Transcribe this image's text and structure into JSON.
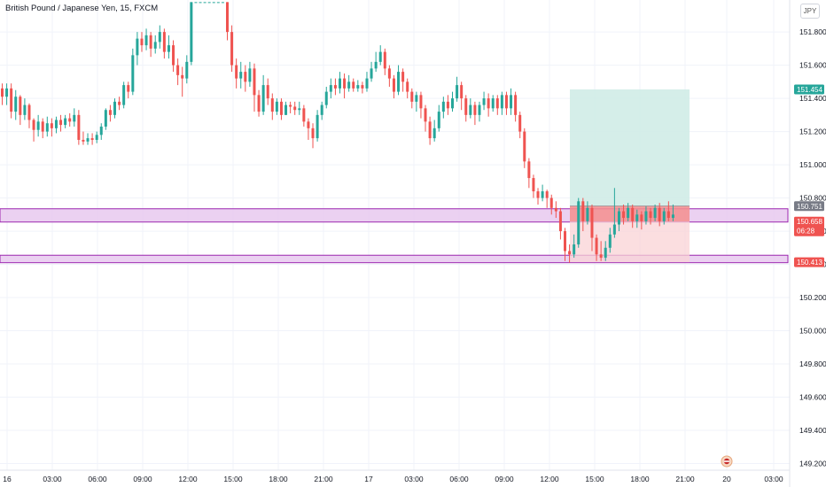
{
  "header": {
    "symbol_title": "British Pound / Japanese Yen, 15, FXCM",
    "currency_label": "JPY"
  },
  "colors": {
    "up": "#26a69a",
    "down": "#ef5350",
    "zone_fill": "#e7c9ee",
    "zone_stroke": "#9c27b0",
    "target_fill": "#d0ece7",
    "stop_fill": "#f9d3d6",
    "entry_stroke": "#9598a1",
    "grid": "#f0f3fa",
    "axis_text": "#131722"
  },
  "chart_data": {
    "type": "candlestick",
    "symbol": "GBPJPY",
    "timeframe": "15",
    "source": "FXCM",
    "y_axis": {
      "range": [
        149.16,
        151.95
      ],
      "ticks": [
        "151.800",
        "151.600",
        "151.400",
        "151.200",
        "151.000",
        "150.800",
        "150.600",
        "150.400",
        "150.200",
        "150.000",
        "149.800",
        "149.600",
        "149.400",
        "149.200"
      ]
    },
    "x_axis": {
      "ticks": [
        "16",
        "03:00",
        "06:00",
        "09:00",
        "12:00",
        "15:00",
        "18:00",
        "21:00",
        "17",
        "03:00",
        "06:00",
        "09:00",
        "12:00",
        "15:00",
        "18:00",
        "21:00",
        "20",
        "03:00"
      ]
    },
    "price_labels": [
      {
        "value": "151.454",
        "kind": "target"
      },
      {
        "value": "150.751",
        "kind": "entry"
      },
      {
        "value": "150.658",
        "kind": "current",
        "countdown": "06:28"
      },
      {
        "value": "150.413",
        "kind": "stop"
      }
    ],
    "zones": [
      {
        "top": 150.735,
        "bottom": 150.655
      },
      {
        "top": 150.455,
        "bottom": 150.41
      }
    ],
    "position": {
      "type": "long",
      "entry": 150.751,
      "target": 151.454,
      "stop": 150.413
    },
    "candles": [
      [
        151.46,
        151.41,
        151.49,
        151.36
      ],
      [
        151.41,
        151.46,
        151.49,
        151.36
      ],
      [
        151.46,
        151.32,
        151.49,
        151.28
      ],
      [
        151.32,
        151.41,
        151.45,
        151.27
      ],
      [
        151.41,
        151.3,
        151.42,
        151.24
      ],
      [
        151.3,
        151.36,
        151.4,
        151.27
      ],
      [
        151.36,
        151.27,
        151.37,
        151.22
      ],
      [
        151.27,
        151.21,
        151.28,
        151.14
      ],
      [
        151.21,
        151.26,
        151.3,
        151.17
      ],
      [
        151.26,
        151.2,
        151.28,
        151.16
      ],
      [
        151.2,
        151.25,
        151.29,
        151.17
      ],
      [
        151.25,
        151.22,
        151.28,
        151.17
      ],
      [
        151.22,
        151.27,
        151.29,
        151.19
      ],
      [
        151.27,
        151.24,
        151.3,
        151.2
      ],
      [
        151.24,
        151.28,
        151.3,
        151.22
      ],
      [
        151.28,
        151.26,
        151.31,
        151.23
      ],
      [
        151.26,
        151.3,
        151.34,
        151.23
      ],
      [
        151.3,
        151.15,
        151.33,
        151.12
      ],
      [
        151.15,
        151.14,
        151.2,
        151.12
      ],
      [
        151.14,
        151.16,
        151.19,
        151.12
      ],
      [
        151.16,
        151.15,
        151.19,
        151.12
      ],
      [
        151.15,
        151.18,
        151.2,
        151.13
      ],
      [
        151.18,
        151.23,
        151.25,
        151.15
      ],
      [
        151.23,
        151.33,
        151.34,
        151.21
      ],
      [
        151.33,
        151.3,
        151.36,
        151.26
      ],
      [
        151.3,
        151.38,
        151.4,
        151.28
      ],
      [
        151.38,
        151.36,
        151.41,
        151.33
      ],
      [
        151.36,
        151.48,
        151.5,
        151.34
      ],
      [
        151.48,
        151.44,
        151.5,
        151.4
      ],
      [
        151.44,
        151.66,
        151.7,
        151.42
      ],
      [
        151.66,
        151.76,
        151.8,
        151.6
      ],
      [
        151.76,
        151.72,
        151.8,
        151.68
      ],
      [
        151.72,
        151.78,
        151.82,
        151.69
      ],
      [
        151.78,
        151.7,
        151.8,
        151.65
      ],
      [
        151.7,
        151.74,
        151.78,
        151.67
      ],
      [
        151.74,
        151.8,
        151.84,
        151.7
      ],
      [
        151.8,
        151.68,
        151.82,
        151.64
      ],
      [
        151.68,
        151.72,
        151.78,
        151.64
      ],
      [
        151.72,
        151.6,
        151.75,
        151.56
      ],
      [
        151.6,
        151.54,
        151.64,
        151.48
      ],
      [
        151.54,
        151.52,
        151.59,
        151.41
      ],
      [
        151.52,
        151.62,
        151.66,
        151.49
      ],
      [
        151.62,
        151.98,
        151.98,
        151.6
      ],
      [
        151.98,
        151.98,
        151.98,
        151.98
      ],
      [
        151.98,
        151.98,
        151.98,
        151.98
      ],
      [
        151.98,
        151.98,
        151.98,
        151.98
      ],
      [
        151.98,
        151.98,
        151.98,
        151.98
      ],
      [
        151.98,
        151.98,
        151.98,
        151.98
      ],
      [
        151.98,
        151.98,
        151.98,
        151.98
      ],
      [
        151.98,
        151.98,
        151.98,
        151.98
      ],
      [
        151.98,
        151.8,
        151.98,
        151.75
      ],
      [
        151.8,
        151.6,
        151.84,
        151.56
      ],
      [
        151.6,
        151.52,
        151.64,
        151.46
      ],
      [
        151.52,
        151.56,
        151.62,
        151.46
      ],
      [
        151.56,
        151.5,
        151.6,
        151.44
      ],
      [
        151.5,
        151.58,
        151.62,
        151.47
      ],
      [
        151.58,
        151.42,
        151.61,
        151.32
      ],
      [
        151.42,
        151.32,
        151.45,
        151.29
      ],
      [
        151.32,
        151.48,
        151.54,
        151.3
      ],
      [
        151.48,
        151.4,
        151.52,
        151.36
      ],
      [
        151.4,
        151.32,
        151.43,
        151.27
      ],
      [
        151.32,
        151.38,
        151.4,
        151.3
      ],
      [
        151.38,
        151.3,
        151.4,
        151.27
      ],
      [
        151.3,
        151.36,
        151.38,
        151.3
      ],
      [
        151.36,
        151.35,
        151.38,
        151.31
      ],
      [
        151.35,
        151.33,
        151.38,
        151.3
      ],
      [
        151.33,
        151.34,
        151.38,
        151.3
      ],
      [
        151.34,
        151.26,
        151.36,
        151.23
      ],
      [
        151.26,
        151.22,
        151.28,
        151.15
      ],
      [
        151.22,
        151.16,
        151.25,
        151.1
      ],
      [
        151.16,
        151.3,
        151.33,
        151.14
      ],
      [
        151.3,
        151.36,
        151.38,
        151.27
      ],
      [
        151.36,
        151.44,
        151.47,
        151.34
      ],
      [
        151.44,
        151.48,
        151.52,
        151.4
      ],
      [
        151.48,
        151.46,
        151.52,
        151.42
      ],
      [
        151.46,
        151.52,
        151.56,
        151.43
      ],
      [
        151.52,
        151.46,
        151.55,
        151.4
      ],
      [
        151.46,
        151.5,
        151.54,
        151.44
      ],
      [
        151.5,
        151.46,
        151.52,
        151.44
      ],
      [
        151.46,
        151.48,
        151.51,
        151.44
      ],
      [
        151.48,
        151.46,
        151.5,
        151.43
      ],
      [
        151.46,
        151.52,
        151.56,
        151.44
      ],
      [
        151.52,
        151.58,
        151.62,
        151.5
      ],
      [
        151.58,
        151.62,
        151.68,
        151.56
      ],
      [
        151.62,
        151.68,
        151.72,
        151.6
      ],
      [
        151.68,
        151.58,
        151.7,
        151.54
      ],
      [
        151.58,
        151.52,
        151.6,
        151.47
      ],
      [
        151.52,
        151.44,
        151.54,
        151.4
      ],
      [
        151.44,
        151.56,
        151.6,
        151.42
      ],
      [
        151.56,
        151.5,
        151.58,
        151.44
      ],
      [
        151.5,
        151.44,
        151.52,
        151.4
      ],
      [
        151.44,
        151.38,
        151.46,
        151.34
      ],
      [
        151.38,
        151.42,
        151.44,
        151.32
      ],
      [
        151.42,
        151.34,
        151.44,
        151.28
      ],
      [
        151.34,
        151.26,
        151.36,
        151.2
      ],
      [
        151.26,
        151.16,
        151.29,
        151.12
      ],
      [
        151.16,
        151.22,
        151.27,
        151.14
      ],
      [
        151.22,
        151.32,
        151.36,
        151.2
      ],
      [
        151.32,
        151.38,
        151.41,
        151.28
      ],
      [
        151.38,
        151.34,
        151.42,
        151.3
      ],
      [
        151.34,
        151.4,
        151.44,
        151.32
      ],
      [
        151.4,
        151.48,
        151.53,
        151.38
      ],
      [
        151.48,
        151.4,
        151.5,
        151.33
      ],
      [
        151.4,
        151.3,
        151.42,
        151.26
      ],
      [
        151.3,
        151.36,
        151.4,
        151.28
      ],
      [
        151.36,
        151.3,
        151.38,
        151.24
      ],
      [
        151.3,
        151.36,
        151.38,
        151.26
      ],
      [
        151.36,
        151.4,
        151.44,
        151.33
      ],
      [
        151.4,
        151.34,
        151.43,
        151.29
      ],
      [
        151.34,
        151.4,
        151.42,
        151.32
      ],
      [
        151.4,
        151.34,
        151.42,
        151.3
      ],
      [
        151.34,
        151.42,
        151.44,
        151.3
      ],
      [
        151.42,
        151.34,
        151.44,
        151.3
      ],
      [
        151.34,
        151.42,
        151.46,
        151.3
      ],
      [
        151.42,
        151.3,
        151.44,
        151.26
      ],
      [
        151.3,
        151.2,
        151.32,
        151.16
      ],
      [
        151.2,
        151.02,
        151.22,
        150.98
      ],
      [
        151.02,
        150.92,
        151.04,
        150.86
      ],
      [
        150.92,
        150.84,
        150.94,
        150.8
      ],
      [
        150.84,
        150.8,
        150.86,
        150.76
      ],
      [
        150.8,
        150.84,
        150.88,
        150.78
      ],
      [
        150.84,
        150.8,
        150.85,
        150.74
      ],
      [
        150.8,
        150.74,
        150.82,
        150.7
      ],
      [
        150.74,
        150.72,
        150.78,
        150.68
      ],
      [
        150.72,
        150.6,
        150.74,
        150.55
      ],
      [
        150.6,
        150.48,
        150.62,
        150.42
      ],
      [
        150.48,
        150.46,
        150.52,
        150.41
      ],
      [
        150.46,
        150.52,
        150.58,
        150.44
      ],
      [
        150.52,
        150.78,
        150.8,
        150.5
      ],
      [
        150.78,
        150.66,
        150.8,
        150.6
      ],
      [
        150.66,
        150.74,
        150.78,
        150.64
      ],
      [
        150.74,
        150.56,
        150.76,
        150.48
      ],
      [
        150.56,
        150.46,
        150.58,
        150.42
      ],
      [
        150.46,
        150.44,
        150.54,
        150.42
      ],
      [
        150.44,
        150.5,
        150.54,
        150.42
      ],
      [
        150.5,
        150.58,
        150.62,
        150.47
      ],
      [
        150.58,
        150.64,
        150.86,
        150.56
      ],
      [
        150.64,
        150.72,
        150.74,
        150.6
      ],
      [
        150.72,
        150.68,
        150.76,
        150.64
      ],
      [
        150.68,
        150.74,
        150.77,
        150.66
      ],
      [
        150.74,
        150.66,
        150.76,
        150.62
      ],
      [
        150.66,
        150.7,
        150.73,
        150.62
      ],
      [
        150.7,
        150.66,
        150.72,
        150.61
      ],
      [
        150.66,
        150.72,
        150.75,
        150.64
      ],
      [
        150.72,
        150.68,
        150.74,
        150.64
      ],
      [
        150.68,
        150.74,
        150.76,
        150.66
      ],
      [
        150.74,
        150.66,
        150.77,
        150.63
      ],
      [
        150.66,
        150.72,
        150.74,
        150.64
      ],
      [
        150.72,
        150.68,
        150.78,
        150.66
      ],
      [
        150.68,
        150.7,
        150.76,
        150.66
      ],
      [
        150.7,
        150.66,
        150.72,
        150.63
      ],
      [
        150.66,
        150.75,
        150.76,
        150.64
      ],
      [
        150.75,
        150.66,
        150.77,
        150.64
      ]
    ]
  }
}
